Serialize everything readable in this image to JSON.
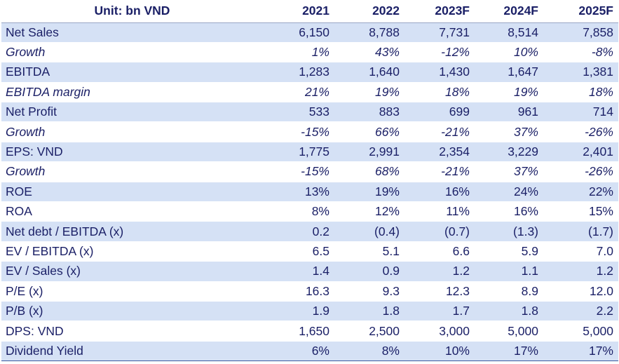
{
  "header": {
    "label": "Unit: bn VND",
    "years": [
      "2021",
      "2022",
      "2023F",
      "2024F",
      "2025F"
    ]
  },
  "rows": [
    {
      "label": "Net Sales",
      "values": [
        "6,150",
        "8,788",
        "7,731",
        "8,514",
        "7,858"
      ],
      "shaded": true,
      "italic": false
    },
    {
      "label": "Growth",
      "values": [
        "1%",
        "43%",
        "-12%",
        "10%",
        "-8%"
      ],
      "shaded": false,
      "italic": true
    },
    {
      "label": "EBITDA",
      "values": [
        "1,283",
        "1,640",
        "1,430",
        "1,647",
        "1,381"
      ],
      "shaded": true,
      "italic": false
    },
    {
      "label": "EBITDA margin",
      "values": [
        "21%",
        "19%",
        "18%",
        "19%",
        "18%"
      ],
      "shaded": false,
      "italic": true
    },
    {
      "label": "Net Profit",
      "values": [
        "533",
        "883",
        "699",
        "961",
        "714"
      ],
      "shaded": true,
      "italic": false
    },
    {
      "label": "Growth",
      "values": [
        "-15%",
        "66%",
        "-21%",
        "37%",
        "-26%"
      ],
      "shaded": false,
      "italic": true
    },
    {
      "label": "EPS: VND",
      "values": [
        "1,775",
        "2,991",
        "2,354",
        "3,229",
        "2,401"
      ],
      "shaded": true,
      "italic": false
    },
    {
      "label": "Growth",
      "values": [
        "-15%",
        "68%",
        "-21%",
        "37%",
        "-26%"
      ],
      "shaded": false,
      "italic": true
    },
    {
      "label": "ROE",
      "values": [
        "13%",
        "19%",
        "16%",
        "24%",
        "22%"
      ],
      "shaded": true,
      "italic": false
    },
    {
      "label": "ROA",
      "values": [
        "8%",
        "12%",
        "11%",
        "16%",
        "15%"
      ],
      "shaded": false,
      "italic": false
    },
    {
      "label": "Net debt / EBITDA (x)",
      "values": [
        "0.2",
        "(0.4)",
        "(0.7)",
        "(1.3)",
        "(1.7)"
      ],
      "shaded": true,
      "italic": false
    },
    {
      "label": "EV / EBITDA (x)",
      "values": [
        "6.5",
        "5.1",
        "6.6",
        "5.9",
        "7.0"
      ],
      "shaded": false,
      "italic": false
    },
    {
      "label": "EV / Sales (x)",
      "values": [
        "1.4",
        "0.9",
        "1.2",
        "1.1",
        "1.2"
      ],
      "shaded": true,
      "italic": false
    },
    {
      "label": "P/E (x)",
      "values": [
        "16.3",
        "9.3",
        "12.3",
        "8.9",
        "12.0"
      ],
      "shaded": false,
      "italic": false
    },
    {
      "label": "P/B (x)",
      "values": [
        "1.9",
        "1.8",
        "1.7",
        "1.8",
        "2.2"
      ],
      "shaded": true,
      "italic": false
    },
    {
      "label": "DPS: VND",
      "values": [
        "1,650",
        "2,500",
        "3,000",
        "5,000",
        "5,000"
      ],
      "shaded": false,
      "italic": false
    },
    {
      "label": "Dividend Yield",
      "values": [
        "6%",
        "8%",
        "10%",
        "17%",
        "17%"
      ],
      "shaded": true,
      "italic": false
    }
  ]
}
